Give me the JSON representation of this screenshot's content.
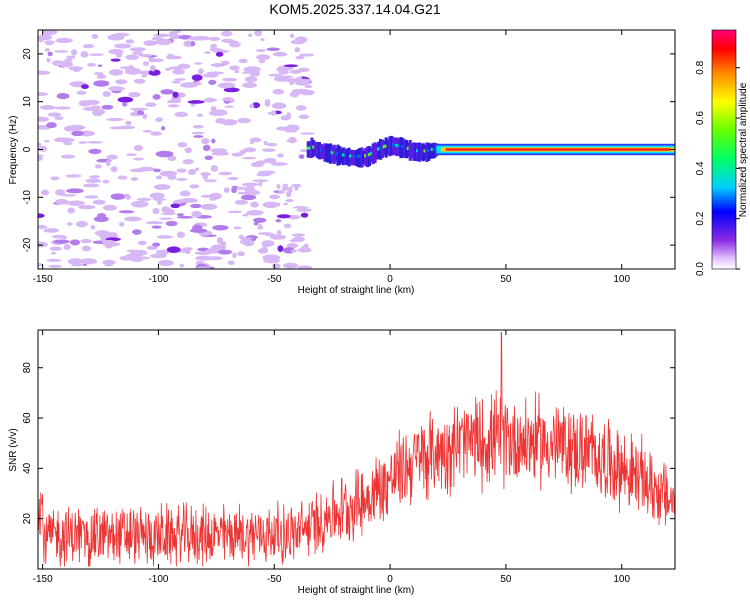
{
  "title": "KOM5.2025.337.14.04.G21",
  "chart_data": [
    {
      "type": "heatmap",
      "name": "spectrogram",
      "xlabel": "Height of straight line (km)",
      "ylabel": "Frequency (Hz)",
      "xlim": [
        -152,
        123
      ],
      "ylim": [
        -25,
        25
      ],
      "xticks": [
        -150,
        -100,
        -50,
        0,
        50,
        100
      ],
      "yticks": [
        -20,
        -10,
        0,
        10,
        20
      ],
      "noise_region_x": [
        -152,
        -35
      ],
      "signal_track": [
        {
          "x": -35,
          "f": 0.5
        },
        {
          "x": -30,
          "f": -0.5
        },
        {
          "x": -25,
          "f": -1.0
        },
        {
          "x": -20,
          "f": -1.5
        },
        {
          "x": -15,
          "f": -1.8
        },
        {
          "x": -10,
          "f": -1.5
        },
        {
          "x": -5,
          "f": 0.0
        },
        {
          "x": 0,
          "f": 0.8
        },
        {
          "x": 5,
          "f": 0.3
        },
        {
          "x": 10,
          "f": -0.5
        },
        {
          "x": 15,
          "f": -0.6
        },
        {
          "x": 20,
          "f": 0.0
        },
        {
          "x": 50,
          "f": 0.0
        },
        {
          "x": 100,
          "f": 0.0
        },
        {
          "x": 123,
          "f": 0.0
        }
      ]
    },
    {
      "type": "colorbar",
      "label": "Normalized spectral amplitude",
      "range": [
        0,
        0.95
      ],
      "ticks": [
        "0.0",
        "0.2",
        "0.4",
        "0.6",
        "0.8"
      ],
      "tick_values": [
        0.0,
        0.2,
        0.4,
        0.6,
        0.8
      ]
    },
    {
      "type": "line",
      "name": "snr",
      "xlabel": "Height of straight line (km)",
      "ylabel": "SNR (v/v)",
      "xlim": [
        -152,
        123
      ],
      "ylim": [
        0,
        95
      ],
      "xticks": [
        -150,
        -100,
        -50,
        0,
        50,
        100
      ],
      "yticks": [
        20,
        40,
        60,
        80
      ],
      "color": "#ee3333",
      "envelope": [
        {
          "x": -150,
          "mean": 13,
          "spread": 11
        },
        {
          "x": -100,
          "mean": 13,
          "spread": 11
        },
        {
          "x": -40,
          "mean": 14,
          "spread": 11
        },
        {
          "x": -25,
          "mean": 22,
          "spread": 12
        },
        {
          "x": -10,
          "mean": 28,
          "spread": 13
        },
        {
          "x": 10,
          "mean": 43,
          "spread": 15
        },
        {
          "x": 30,
          "mean": 50,
          "spread": 16
        },
        {
          "x": 50,
          "mean": 52,
          "spread": 17
        },
        {
          "x": 70,
          "mean": 50,
          "spread": 16
        },
        {
          "x": 90,
          "mean": 45,
          "spread": 15
        },
        {
          "x": 110,
          "mean": 35,
          "spread": 14
        },
        {
          "x": 123,
          "mean": 26,
          "spread": 12
        }
      ],
      "peak": {
        "x": 48,
        "y": 94
      }
    }
  ]
}
